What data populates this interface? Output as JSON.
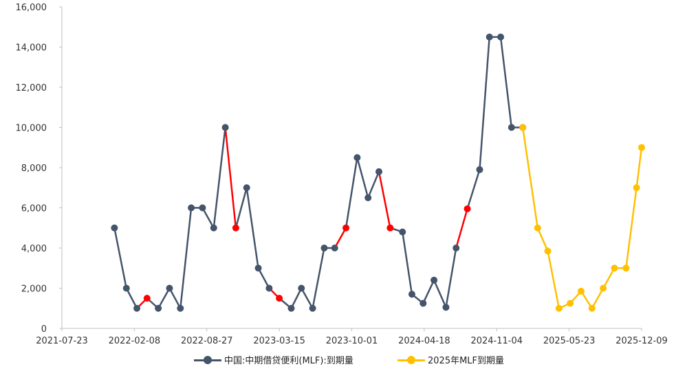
{
  "chart_data": {
    "type": "line",
    "xlim": [
      "2021-07-23",
      "2025-12-09"
    ],
    "ylim": [
      0,
      16000
    ],
    "x_ticks": [
      "2021-07-23",
      "2022-02-08",
      "2022-08-27",
      "2023-03-15",
      "2023-10-01",
      "2024-04-18",
      "2024-11-04",
      "2025-05-23",
      "2025-12-09"
    ],
    "y_ticks": [
      "0",
      "2,000",
      "4,000",
      "6,000",
      "8,000",
      "10,000",
      "12,000",
      "14,000",
      "16,000"
    ],
    "grid": false,
    "legend_position": "bottom-center",
    "highlight_color": "#ff0000",
    "series": [
      {
        "name": "中国:中期借贷便利(MLF):到期量",
        "color": "#44546a",
        "x": [
          "2021-12-15",
          "2022-01-17",
          "2022-02-15",
          "2022-03-15",
          "2022-04-15",
          "2022-05-16",
          "2022-06-15",
          "2022-07-15",
          "2022-08-15",
          "2022-09-15",
          "2022-10-17",
          "2022-11-15",
          "2022-12-15",
          "2023-01-16",
          "2023-02-15",
          "2023-03-15",
          "2023-04-17",
          "2023-05-15",
          "2023-06-15",
          "2023-07-17",
          "2023-08-15",
          "2023-09-15",
          "2023-10-16",
          "2023-11-15",
          "2023-12-15",
          "2024-01-15",
          "2024-02-18",
          "2024-03-15",
          "2024-04-15",
          "2024-05-15",
          "2024-06-17",
          "2024-07-15",
          "2024-08-15",
          "2024-09-18",
          "2024-10-15",
          "2024-11-15",
          "2024-12-15",
          "2025-01-15"
        ],
        "values": [
          5000,
          2000,
          1000,
          1500,
          1000,
          2000,
          1000,
          6000,
          6000,
          5000,
          10000,
          5000,
          7000,
          3000,
          2000,
          1500,
          1000,
          2000,
          1000,
          4000,
          4000,
          5000,
          8500,
          6500,
          7800,
          5000,
          4800,
          1700,
          1250,
          2400,
          1050,
          4000,
          5950,
          7900,
          14500,
          14500,
          10000,
          10000
        ],
        "highlight_segments": [
          [
            2,
            3
          ],
          [
            10,
            11
          ],
          [
            14,
            15
          ],
          [
            20,
            21
          ],
          [
            24,
            25
          ],
          [
            31,
            32
          ]
        ]
      },
      {
        "name": "2025年MLF到期量",
        "color": "#ffc000",
        "x": [
          "2025-01-15",
          "2025-02-25",
          "2025-03-25",
          "2025-04-25",
          "2025-05-26",
          "2025-06-25",
          "2025-07-25",
          "2025-08-25",
          "2025-09-25",
          "2025-10-27",
          "2025-11-25",
          "2025-12-09"
        ],
        "values": [
          10000,
          5000,
          3850,
          1000,
          1250,
          1850,
          1000,
          2000,
          3000,
          3000,
          7000,
          9000
        ]
      }
    ]
  }
}
